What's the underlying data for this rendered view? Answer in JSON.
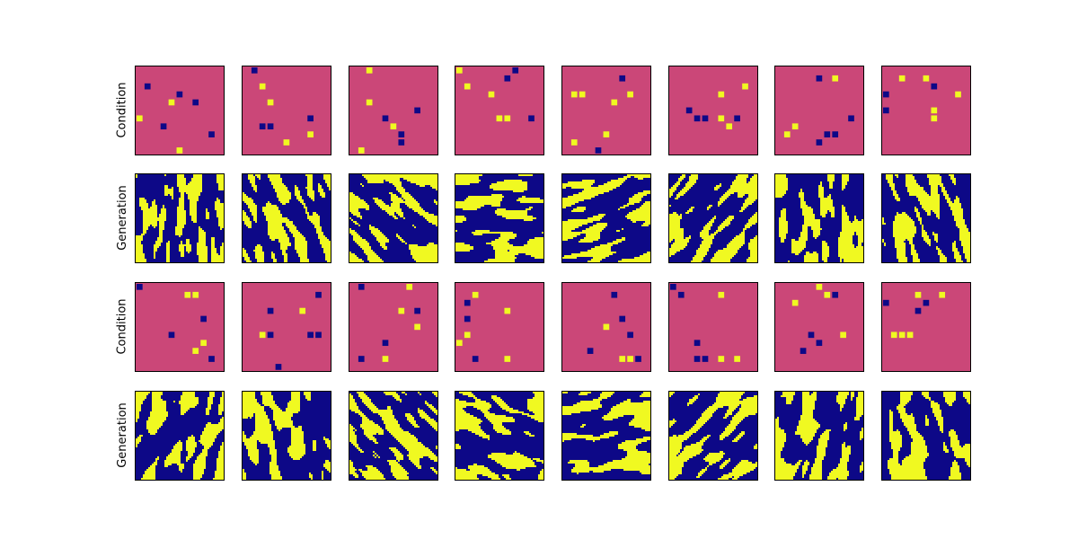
{
  "chart_data": {
    "type": "heatmap",
    "title": "",
    "rows": [
      {
        "label": "Condition",
        "kind": "condition"
      },
      {
        "label": "Generation",
        "kind": "generation"
      },
      {
        "label": "Condition",
        "kind": "condition"
      },
      {
        "label": "Generation",
        "kind": "generation"
      }
    ],
    "columns": 8,
    "grid": false,
    "ticks": false
  },
  "colors": {
    "background_condition": "#cb4778",
    "low": "#0d0887",
    "high": "#f0f921"
  },
  "condition_points": [
    [
      [
        1,
        2,
        "low"
      ],
      [
        4,
        4,
        "high"
      ],
      [
        5,
        3,
        "low"
      ],
      [
        7,
        4,
        "low"
      ],
      [
        0,
        6,
        "high"
      ],
      [
        3,
        7,
        "low"
      ],
      [
        5,
        10,
        "high"
      ],
      [
        9,
        8,
        "low"
      ]
    ],
    [
      [
        1,
        0,
        "low"
      ],
      [
        2,
        2,
        "high"
      ],
      [
        3,
        4,
        "high"
      ],
      [
        2,
        7,
        "low"
      ],
      [
        3,
        7,
        "low"
      ],
      [
        8,
        6,
        "low"
      ],
      [
        8,
        8,
        "high"
      ],
      [
        5,
        9,
        "high"
      ]
    ],
    [
      [
        2,
        0,
        "high"
      ],
      [
        2,
        4,
        "high"
      ],
      [
        4,
        6,
        "low"
      ],
      [
        8,
        5,
        "low"
      ],
      [
        5,
        7,
        "high"
      ],
      [
        6,
        8,
        "low"
      ],
      [
        6,
        9,
        "low"
      ],
      [
        1,
        10,
        "high"
      ]
    ],
    [
      [
        0,
        0,
        "high"
      ],
      [
        7,
        0,
        "low"
      ],
      [
        6,
        1,
        "low"
      ],
      [
        1,
        2,
        "high"
      ],
      [
        4,
        3,
        "high"
      ],
      [
        5,
        6,
        "high"
      ],
      [
        6,
        6,
        "high"
      ],
      [
        9,
        6,
        "low"
      ]
    ],
    [
      [
        1,
        3,
        "high"
      ],
      [
        2,
        3,
        "high"
      ],
      [
        7,
        1,
        "low"
      ],
      [
        8,
        3,
        "high"
      ],
      [
        6,
        4,
        "high"
      ],
      [
        5,
        8,
        "high"
      ],
      [
        1,
        9,
        "high"
      ],
      [
        4,
        10,
        "low"
      ]
    ],
    [
      [
        2,
        5,
        "low"
      ],
      [
        3,
        6,
        "low"
      ],
      [
        4,
        6,
        "low"
      ],
      [
        6,
        3,
        "high"
      ],
      [
        9,
        2,
        "high"
      ],
      [
        8,
        6,
        "low"
      ],
      [
        7,
        7,
        "high"
      ],
      [
        6,
        6,
        "high"
      ]
    ],
    [
      [
        5,
        1,
        "low"
      ],
      [
        7,
        1,
        "high"
      ],
      [
        9,
        6,
        "low"
      ],
      [
        2,
        7,
        "high"
      ],
      [
        1,
        8,
        "high"
      ],
      [
        6,
        8,
        "low"
      ],
      [
        7,
        8,
        "low"
      ],
      [
        5,
        9,
        "low"
      ]
    ],
    [
      [
        2,
        1,
        "high"
      ],
      [
        5,
        1,
        "high"
      ],
      [
        6,
        2,
        "low"
      ],
      [
        9,
        3,
        "high"
      ],
      [
        0,
        3,
        "low"
      ],
      [
        0,
        5,
        "low"
      ],
      [
        6,
        5,
        "high"
      ],
      [
        6,
        6,
        "high"
      ]
    ],
    [
      [
        6,
        1,
        "high"
      ],
      [
        7,
        1,
        "high"
      ],
      [
        8,
        4,
        "low"
      ],
      [
        4,
        6,
        "low"
      ],
      [
        8,
        7,
        "high"
      ],
      [
        7,
        8,
        "high"
      ],
      [
        9,
        9,
        "low"
      ],
      [
        0,
        0,
        "low"
      ]
    ],
    [
      [
        9,
        1,
        "low"
      ],
      [
        3,
        3,
        "low"
      ],
      [
        7,
        3,
        "high"
      ],
      [
        8,
        6,
        "low"
      ],
      [
        9,
        6,
        "low"
      ],
      [
        3,
        6,
        "low"
      ],
      [
        2,
        6,
        "high"
      ],
      [
        4,
        10,
        "low"
      ]
    ],
    [
      [
        1,
        0,
        "low"
      ],
      [
        7,
        0,
        "high"
      ],
      [
        6,
        3,
        "high"
      ],
      [
        8,
        3,
        "low"
      ],
      [
        4,
        7,
        "low"
      ],
      [
        1,
        9,
        "low"
      ],
      [
        4,
        9,
        "high"
      ],
      [
        8,
        5,
        "high"
      ]
    ],
    [
      [
        2,
        1,
        "high"
      ],
      [
        1,
        2,
        "low"
      ],
      [
        1,
        4,
        "low"
      ],
      [
        6,
        3,
        "high"
      ],
      [
        1,
        6,
        "high"
      ],
      [
        0,
        7,
        "high"
      ],
      [
        6,
        9,
        "high"
      ],
      [
        2,
        9,
        "low"
      ]
    ],
    [
      [
        6,
        1,
        "low"
      ],
      [
        7,
        4,
        "low"
      ],
      [
        5,
        5,
        "high"
      ],
      [
        8,
        6,
        "low"
      ],
      [
        9,
        9,
        "low"
      ],
      [
        8,
        9,
        "high"
      ],
      [
        3,
        8,
        "low"
      ],
      [
        7,
        9,
        "high"
      ]
    ],
    [
      [
        1,
        1,
        "low"
      ],
      [
        6,
        1,
        "high"
      ],
      [
        3,
        7,
        "low"
      ],
      [
        3,
        9,
        "low"
      ],
      [
        4,
        9,
        "low"
      ],
      [
        6,
        9,
        "high"
      ],
      [
        8,
        9,
        "high"
      ],
      [
        0,
        0,
        "low"
      ]
    ],
    [
      [
        5,
        0,
        "high"
      ],
      [
        6,
        1,
        "high"
      ],
      [
        7,
        1,
        "low"
      ],
      [
        2,
        2,
        "high"
      ],
      [
        4,
        6,
        "low"
      ],
      [
        5,
        7,
        "low"
      ],
      [
        3,
        8,
        "low"
      ],
      [
        8,
        6,
        "high"
      ]
    ],
    [
      [
        4,
        1,
        "high"
      ],
      [
        7,
        1,
        "high"
      ],
      [
        5,
        2,
        "low"
      ],
      [
        0,
        2,
        "low"
      ],
      [
        2,
        6,
        "high"
      ],
      [
        3,
        6,
        "high"
      ],
      [
        1,
        6,
        "high"
      ],
      [
        4,
        3,
        "low"
      ]
    ]
  ]
}
